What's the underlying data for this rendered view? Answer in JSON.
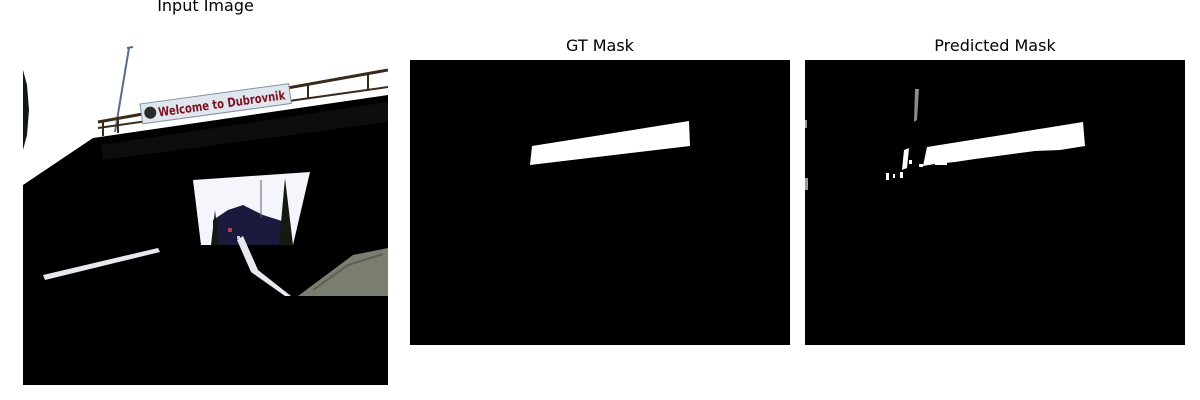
{
  "panels": [
    {
      "title": "Input Image"
    },
    {
      "title": "GT Mask"
    },
    {
      "title": "Predicted Mask"
    }
  ],
  "sign": {
    "text": "Welcome to Dubrovnik"
  },
  "colors": {
    "background": "#ffffff",
    "mask_background": "#000000",
    "mask_foreground": "#ffffff",
    "sign_text": "#7a1020"
  }
}
